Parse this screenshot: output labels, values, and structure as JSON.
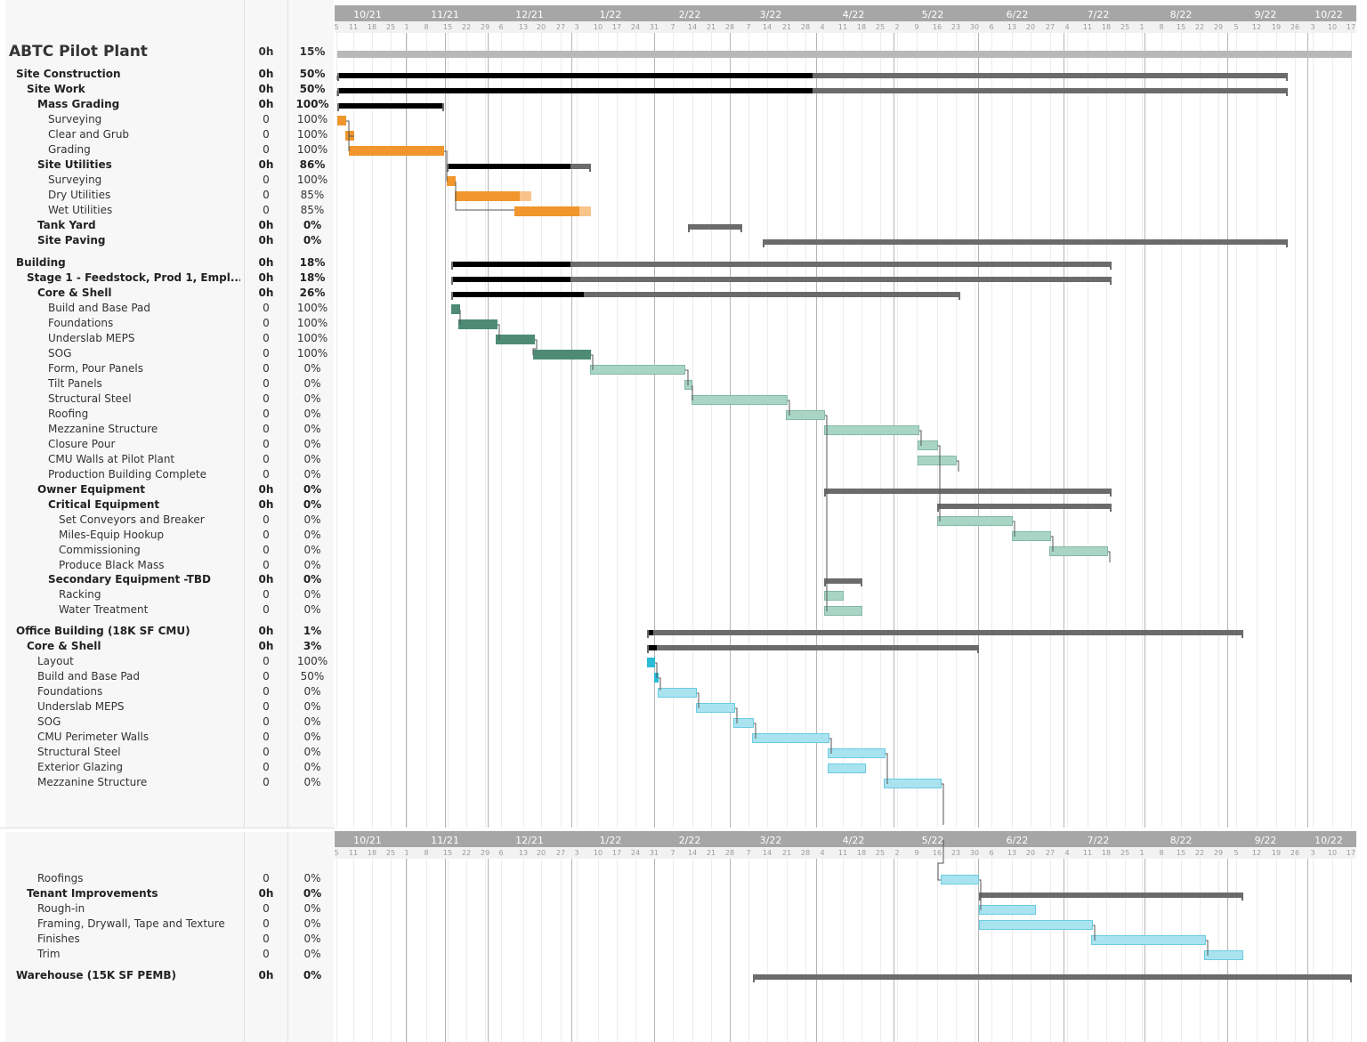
{
  "project": "ABTC Pilot Plant",
  "timeline": {
    "months": [
      "10/21",
      "11/21",
      "12/21",
      "1/22",
      "2/22",
      "3/22",
      "4/22",
      "5/22",
      "6/22",
      "7/22",
      "8/22",
      "9/22",
      "10/22"
    ],
    "days": [
      "5",
      "11",
      "18",
      "25",
      "1",
      "8",
      "15",
      "22",
      "29",
      "6",
      "13",
      "20",
      "27",
      "3",
      "10",
      "17",
      "24",
      "31",
      "7",
      "14",
      "21",
      "28",
      "7",
      "14",
      "21",
      "28",
      "4",
      "11",
      "18",
      "25",
      "2",
      "9",
      "16",
      "23",
      "30",
      "6",
      "13",
      "20",
      "27",
      "4",
      "11",
      "18",
      "25",
      "1",
      "8",
      "15",
      "22",
      "29",
      "5",
      "12",
      "19",
      "26",
      "3",
      "10",
      "17"
    ],
    "today_marker_color": "#e00000"
  },
  "colors": {
    "complete_summary": "#000000",
    "remaining_summary": "#6b6b6b",
    "site_task": "#f0962d",
    "site_task_light": "#f8c48a",
    "building_done": "#4d8b74",
    "building_todo": "#a8d5c4",
    "office_task": "#a9e3f0",
    "office_done": "#2bbcd8",
    "header_bar": "#a6a6a6"
  },
  "tasks": [
    {
      "name": "ABTC Pilot Plant",
      "work": "0h",
      "pct": "15%",
      "level": 0,
      "type": "top"
    },
    {
      "name": "Site Construction",
      "work": "0h",
      "pct": "50%",
      "level": 1,
      "type": "sum"
    },
    {
      "name": "Site Work",
      "work": "0h",
      "pct": "50%",
      "level": 2,
      "type": "sum"
    },
    {
      "name": "Mass Grading",
      "work": "0h",
      "pct": "100%",
      "level": 3,
      "type": "sum"
    },
    {
      "name": "Surveying",
      "work": "0",
      "pct": "100%",
      "level": 4,
      "type": "task"
    },
    {
      "name": "Clear and Grub",
      "work": "0",
      "pct": "100%",
      "level": 4,
      "type": "task"
    },
    {
      "name": "Grading",
      "work": "0",
      "pct": "100%",
      "level": 4,
      "type": "task"
    },
    {
      "name": "Site Utilities",
      "work": "0h",
      "pct": "86%",
      "level": 3,
      "type": "sum"
    },
    {
      "name": "Surveying",
      "work": "0",
      "pct": "100%",
      "level": 4,
      "type": "task"
    },
    {
      "name": "Dry Utilities",
      "work": "0",
      "pct": "85%",
      "level": 4,
      "type": "task"
    },
    {
      "name": "Wet Utilities",
      "work": "0",
      "pct": "85%",
      "level": 4,
      "type": "task"
    },
    {
      "name": "Tank Yard",
      "work": "0h",
      "pct": "0%",
      "level": 3,
      "type": "sum"
    },
    {
      "name": "Site Paving",
      "work": "0h",
      "pct": "0%",
      "level": 3,
      "type": "sum"
    },
    {
      "name": "Building",
      "work": "0h",
      "pct": "18%",
      "level": 1,
      "type": "sum"
    },
    {
      "name": "Stage 1 - Feedstock, Prod 1, Empl...",
      "work": "0h",
      "pct": "18%",
      "level": 2,
      "type": "sum"
    },
    {
      "name": "Core & Shell",
      "work": "0h",
      "pct": "26%",
      "level": 3,
      "type": "sum"
    },
    {
      "name": "Build and Base Pad",
      "work": "0",
      "pct": "100%",
      "level": 4,
      "type": "task"
    },
    {
      "name": "Foundations",
      "work": "0",
      "pct": "100%",
      "level": 4,
      "type": "task"
    },
    {
      "name": "Underslab MEPS",
      "work": "0",
      "pct": "100%",
      "level": 4,
      "type": "task"
    },
    {
      "name": "SOG",
      "work": "0",
      "pct": "100%",
      "level": 4,
      "type": "task"
    },
    {
      "name": "Form, Pour Panels",
      "work": "0",
      "pct": "0%",
      "level": 4,
      "type": "task"
    },
    {
      "name": "Tilt Panels",
      "work": "0",
      "pct": "0%",
      "level": 4,
      "type": "task"
    },
    {
      "name": "Structural Steel",
      "work": "0",
      "pct": "0%",
      "level": 4,
      "type": "task"
    },
    {
      "name": "Roofing",
      "work": "0",
      "pct": "0%",
      "level": 4,
      "type": "task"
    },
    {
      "name": "Mezzanine Structure",
      "work": "0",
      "pct": "0%",
      "level": 4,
      "type": "task"
    },
    {
      "name": "Closure Pour",
      "work": "0",
      "pct": "0%",
      "level": 4,
      "type": "task"
    },
    {
      "name": "CMU Walls at Pilot Plant",
      "work": "0",
      "pct": "0%",
      "level": 4,
      "type": "task"
    },
    {
      "name": "Production Building Complete",
      "work": "0",
      "pct": "0%",
      "level": 4,
      "type": "task"
    },
    {
      "name": "Owner Equipment",
      "work": "0h",
      "pct": "0%",
      "level": 3,
      "type": "sum"
    },
    {
      "name": "Critical Equipment",
      "work": "0h",
      "pct": "0%",
      "level": 4,
      "type": "sum"
    },
    {
      "name": "Set Conveyors and Breaker",
      "work": "0",
      "pct": "0%",
      "level": 5,
      "type": "task"
    },
    {
      "name": "Miles-Equip Hookup",
      "work": "0",
      "pct": "0%",
      "level": 5,
      "type": "task"
    },
    {
      "name": "Commissioning",
      "work": "0",
      "pct": "0%",
      "level": 5,
      "type": "task"
    },
    {
      "name": "Produce Black Mass",
      "work": "0",
      "pct": "0%",
      "level": 5,
      "type": "task"
    },
    {
      "name": "Secondary Equipment -TBD",
      "work": "0h",
      "pct": "0%",
      "level": 4,
      "type": "sum"
    },
    {
      "name": "Racking",
      "work": "0",
      "pct": "0%",
      "level": 5,
      "type": "task"
    },
    {
      "name": "Water Treatment",
      "work": "0",
      "pct": "0%",
      "level": 5,
      "type": "task"
    },
    {
      "name": "Office Building (18K SF CMU)",
      "work": "0h",
      "pct": "1%",
      "level": 1,
      "type": "sum"
    },
    {
      "name": "Core & Shell",
      "work": "0h",
      "pct": "3%",
      "level": 2,
      "type": "sum"
    },
    {
      "name": "Layout",
      "work": "0",
      "pct": "100%",
      "level": 3,
      "type": "task"
    },
    {
      "name": "Build and Base Pad",
      "work": "0",
      "pct": "50%",
      "level": 3,
      "type": "task"
    },
    {
      "name": "Foundations",
      "work": "0",
      "pct": "0%",
      "level": 3,
      "type": "task"
    },
    {
      "name": "Underslab MEPS",
      "work": "0",
      "pct": "0%",
      "level": 3,
      "type": "task"
    },
    {
      "name": "SOG",
      "work": "0",
      "pct": "0%",
      "level": 3,
      "type": "task"
    },
    {
      "name": "CMU Perimeter Walls",
      "work": "0",
      "pct": "0%",
      "level": 3,
      "type": "task"
    },
    {
      "name": "Structural Steel",
      "work": "0",
      "pct": "0%",
      "level": 3,
      "type": "task"
    },
    {
      "name": "Exterior Glazing",
      "work": "0",
      "pct": "0%",
      "level": 3,
      "type": "task"
    },
    {
      "name": "Mezzanine Structure",
      "work": "0",
      "pct": "0%",
      "level": 3,
      "type": "task"
    },
    {
      "name": "Roofings",
      "work": "0",
      "pct": "0%",
      "level": 3,
      "type": "task"
    },
    {
      "name": "Tenant Improvements",
      "work": "0h",
      "pct": "0%",
      "level": 2,
      "type": "sum"
    },
    {
      "name": "Rough-in",
      "work": "0",
      "pct": "0%",
      "level": 3,
      "type": "task"
    },
    {
      "name": "Framing, Drywall, Tape and Texture",
      "work": "0",
      "pct": "0%",
      "level": 3,
      "type": "task"
    },
    {
      "name": "Finishes",
      "work": "0",
      "pct": "0%",
      "level": 3,
      "type": "task"
    },
    {
      "name": "Trim",
      "work": "0",
      "pct": "0%",
      "level": 3,
      "type": "task"
    },
    {
      "name": "Warehouse (15K SF PEMB)",
      "work": "0h",
      "pct": "0%",
      "level": 1,
      "type": "sum"
    }
  ]
}
